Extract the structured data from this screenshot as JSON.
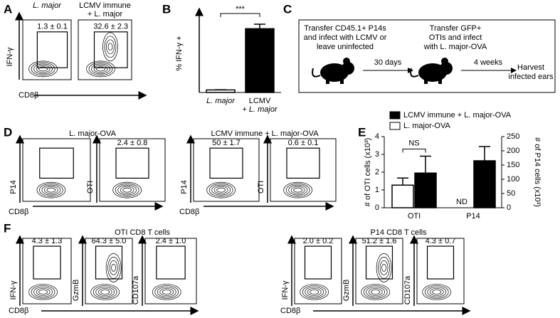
{
  "panel_labels": [
    "A",
    "B",
    "C",
    "D",
    "E",
    "F"
  ],
  "panel_a": {
    "y_label": "IFN-γ",
    "x_label": "CD8β",
    "plots": [
      {
        "title": [
          "L. major"
        ],
        "gate": "1.3 ± 0.1"
      },
      {
        "title": [
          "LCMV immune",
          "+ L. major"
        ],
        "gate": "32.6 ± 2.3"
      }
    ]
  },
  "panel_c": {
    "steps": [
      [
        "Transfer CD45.1+ P14s",
        "and infect with LCMV or",
        "leave uninfected"
      ],
      [
        "Transfer GFP+",
        "OTIs and infect",
        "with L. major-OVA"
      ],
      [
        "Harvest",
        "infected ears"
      ]
    ],
    "intervals": [
      "30 days",
      "4 weeks"
    ]
  },
  "panel_d": {
    "titles": [
      "L. major-OVA",
      "LCMV immune + L. major-OVA"
    ],
    "x_label": "CD8β",
    "plots": [
      {
        "y_label": "P14"
      },
      {
        "y_label": "OTI",
        "gate": "2.4 ± 0.8"
      },
      {
        "y_label": "P14",
        "gate": "50 ± 1.7"
      },
      {
        "y_label": "OTI",
        "gate": "0.6 ± 0.1"
      }
    ]
  },
  "panel_f": {
    "titles": [
      "OTI CD8 T cells",
      "P14 CD8 T cells"
    ],
    "x_label": "CD8β",
    "plots": [
      {
        "y_label": "IFN-γ",
        "gate": "4.3 ± 1.3"
      },
      {
        "y_label": "GzmB",
        "gate": "64.3 ± 5.0"
      },
      {
        "y_label": "CD107a",
        "gate": "2.4 ± 1.0"
      },
      {
        "y_label": "IFN-γ",
        "gate": "2.0 ± 0.2"
      },
      {
        "y_label": "GzmB",
        "gate": "51.2 ± 1.6"
      },
      {
        "y_label": "CD107a",
        "gate": "4.3 ± 0.7"
      }
    ]
  },
  "chart_data": [
    {
      "type": "bar",
      "y_label": "% IFN-γ +",
      "categories": [
        [
          "L. major"
        ],
        [
          "LCMV",
          "+ L. major"
        ]
      ],
      "values": [
        1.3,
        32.6
      ],
      "errors": [
        0.1,
        2.3
      ],
      "colors": [
        "#ffffff",
        "#000000"
      ],
      "ylim": [
        0,
        40
      ],
      "significance": "***"
    },
    {
      "type": "grouped_bar",
      "y_label": "# of OTI cells (x10³)",
      "y2_label": "# of P14 cells (x10³)",
      "categories": [
        "OTI",
        "P14"
      ],
      "category_axis": [
        "y",
        "y2"
      ],
      "series": [
        {
          "name": "LCMV immune + L. major-OVA",
          "color": "#000000",
          "values": [
            1.95,
            165
          ],
          "errors": [
            0.95,
            50
          ]
        },
        {
          "name": "L. major-OVA",
          "color": "#ffffff",
          "values": [
            1.27,
            null
          ],
          "errors": [
            0.4,
            null
          ]
        }
      ],
      "ylim": [
        0,
        4
      ],
      "yticks": [
        0,
        1,
        2,
        3,
        4
      ],
      "y2lim": [
        0,
        250
      ],
      "y2ticks": [
        0,
        50,
        100,
        150,
        200,
        250
      ],
      "significance": "NS",
      "missing_label": "ND"
    }
  ]
}
